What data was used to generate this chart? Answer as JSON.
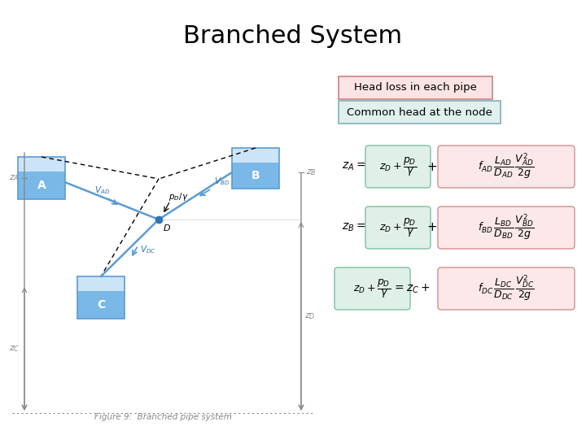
{
  "title": "Branched System",
  "title_fontsize": 22,
  "bg_color": "#ffffff",
  "label1": "Head loss in each pipe",
  "label1_bg": "#fce4e4",
  "label1_border": "#d08080",
  "label2": "Common head at the node",
  "label2_bg": "#dff0ee",
  "label2_border": "#80b0c0",
  "eq_box_pink": "#fce8e8",
  "eq_box_pink_border": "#d09090",
  "eq_box_green": "#dff0e8",
  "eq_box_green_border": "#80c0a0",
  "figure_caption": "Figure 9:  Branched pipe system",
  "tank_color_border": "#5b9bd5",
  "tank_color_water": "#7ab8e8",
  "tank_color_top": "#cce4f7",
  "pipe_color": "#5b9bd5",
  "node_color": "#2e75b6",
  "text_blue": "#2e75b6",
  "gray": "#888888",
  "dark_gray": "#555555"
}
